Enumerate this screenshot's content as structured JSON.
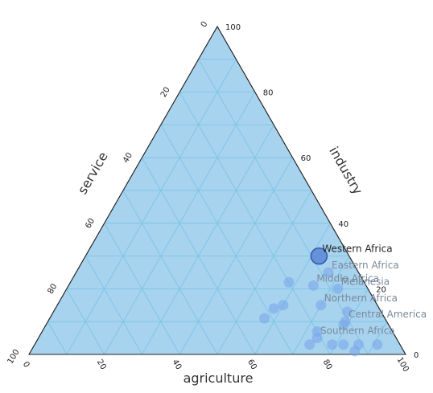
{
  "chart_data": {
    "type": "scatter",
    "subtype": "ternary",
    "axes": {
      "bottom": {
        "label": "agriculture",
        "ticks": [
          "0",
          "20",
          "40",
          "60",
          "80",
          "100"
        ]
      },
      "right": {
        "label": "industry",
        "ticks": [
          "0",
          "20",
          "40",
          "60",
          "80",
          "100"
        ]
      },
      "left": {
        "label": "service",
        "ticks": [
          "0",
          "20",
          "40",
          "60",
          "80",
          "100"
        ]
      }
    },
    "grid": true,
    "grid_step": 10,
    "fill_color": "#a7d3ef",
    "grid_color": "#7fc6e4",
    "point_color": "#7aa6e8",
    "highlight_color": "#5b86d6",
    "points": [
      {
        "name": "Western Africa",
        "agriculture": 62,
        "industry": 30,
        "service": 8,
        "highlight": true,
        "show_label": true
      },
      {
        "name": "Eastern Africa",
        "agriculture": 67,
        "industry": 25,
        "service": 8,
        "highlight": false,
        "show_label": true
      },
      {
        "name": "Middle Africa",
        "agriculture": 65,
        "industry": 21,
        "service": 14,
        "highlight": false,
        "show_label": true
      },
      {
        "name": "Melanesia",
        "agriculture": 72,
        "industry": 20,
        "service": 8,
        "highlight": false,
        "show_label": true
      },
      {
        "name": "Northern Africa",
        "agriculture": 70,
        "industry": 15,
        "service": 15,
        "highlight": false,
        "show_label": true
      },
      {
        "name": "Central America",
        "agriculture": 79,
        "industry": 10,
        "service": 11,
        "highlight": false,
        "show_label": true
      },
      {
        "name": "Southern Africa",
        "agriculture": 74,
        "industry": 5,
        "service": 21,
        "highlight": false,
        "show_label": true
      },
      {
        "name": "",
        "agriculture": 58,
        "industry": 22,
        "service": 20,
        "highlight": false,
        "show_label": false
      },
      {
        "name": "",
        "agriculture": 60,
        "industry": 15,
        "service": 25,
        "highlight": false,
        "show_label": false
      },
      {
        "name": "",
        "agriculture": 58,
        "industry": 14,
        "service": 28,
        "highlight": false,
        "show_label": false
      },
      {
        "name": "",
        "agriculture": 57,
        "industry": 11,
        "service": 32,
        "highlight": false,
        "show_label": false
      },
      {
        "name": "",
        "agriculture": 78,
        "industry": 13,
        "service": 9,
        "highlight": false,
        "show_label": false
      },
      {
        "name": "",
        "agriculture": 79,
        "industry": 9,
        "service": 12,
        "highlight": false,
        "show_label": false
      },
      {
        "name": "",
        "agriculture": 73,
        "industry": 7,
        "service": 20,
        "highlight": false,
        "show_label": false
      },
      {
        "name": "",
        "agriculture": 73,
        "industry": 3,
        "service": 24,
        "highlight": false,
        "show_label": false
      },
      {
        "name": "",
        "agriculture": 79,
        "industry": 3,
        "service": 18,
        "highlight": false,
        "show_label": false
      },
      {
        "name": "",
        "agriculture": 82,
        "industry": 3,
        "service": 15,
        "highlight": false,
        "show_label": false
      },
      {
        "name": "",
        "agriculture": 86,
        "industry": 3,
        "service": 11,
        "highlight": false,
        "show_label": false
      },
      {
        "name": "",
        "agriculture": 86,
        "industry": 1,
        "service": 13,
        "highlight": false,
        "show_label": false
      },
      {
        "name": "",
        "agriculture": 91,
        "industry": 3,
        "service": 6,
        "highlight": false,
        "show_label": false
      }
    ]
  }
}
